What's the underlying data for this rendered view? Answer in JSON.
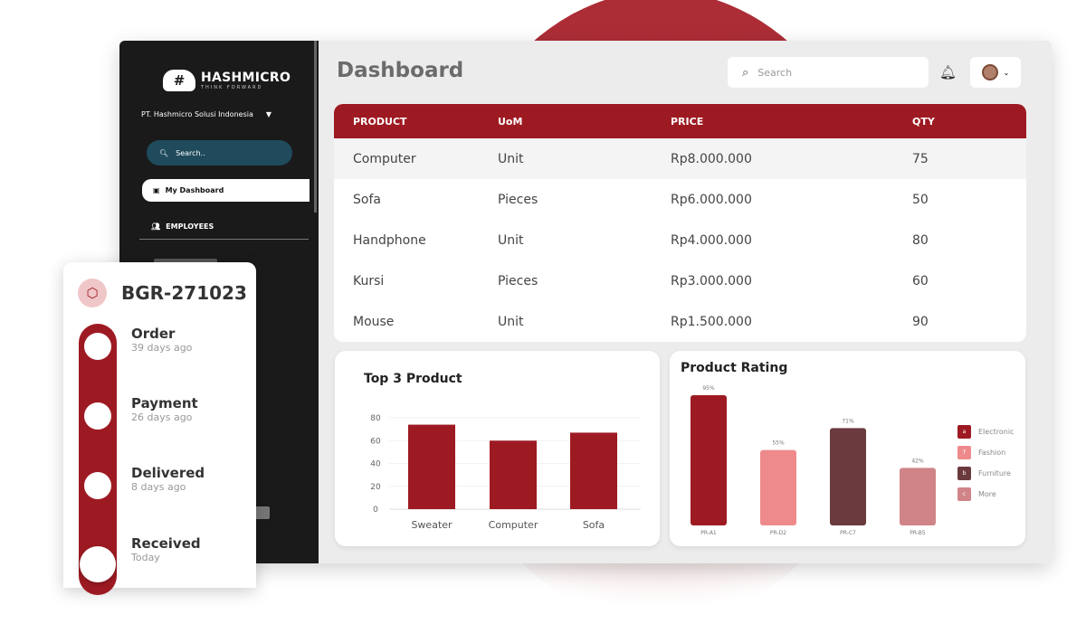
{
  "sidebar": {
    "logo_text": "HASHMICRO",
    "logo_tagline": "THINK FORWARD",
    "company": "PT. Hashmicro Solusi Indonesia",
    "search_placeholder": "Search..",
    "active_item": "My Dashboard",
    "section": "EMPLOYEES"
  },
  "header": {
    "title": "Dashboard",
    "search_placeholder": "Search"
  },
  "table": {
    "columns": [
      "PRODUCT",
      "UoM",
      "PRICE",
      "QTY"
    ],
    "rows": [
      [
        "Computer",
        "Unit",
        "Rp8.000.000",
        "75"
      ],
      [
        "Sofa",
        "Pieces",
        "Rp6.000.000",
        "50"
      ],
      [
        "Handphone",
        "Unit",
        "Rp4.000.000",
        "80"
      ],
      [
        "Kursi",
        "Pieces",
        "Rp3.000.000",
        "60"
      ],
      [
        "Mouse",
        "Unit",
        "Rp1.500.000",
        "90"
      ]
    ]
  },
  "chart_data": [
    {
      "type": "bar",
      "title": "Top 3 Product",
      "categories": [
        "Sweater",
        "Computer",
        "Sofa"
      ],
      "values": [
        74,
        60,
        67
      ],
      "yticks": [
        "0",
        "20",
        "40",
        "60",
        "80"
      ],
      "ylim": [
        0,
        80
      ],
      "color": "#9e1a22"
    },
    {
      "type": "bar",
      "title": "Product Rating",
      "categories": [
        "PR-A1",
        "PR-D2",
        "PR-C7",
        "PR-B5"
      ],
      "values": [
        95,
        55,
        71,
        42
      ],
      "labels": [
        "95%",
        "55%",
        "71%",
        "42%"
      ],
      "colors": [
        "#9e1a22",
        "#ef8a8c",
        "#6b3a3e",
        "#d08488"
      ],
      "legend": [
        {
          "key": "a",
          "label": "Electronic"
        },
        {
          "key": "f",
          "label": "Fashion"
        },
        {
          "key": "b",
          "label": "Furniture"
        },
        {
          "key": "c",
          "label": "More"
        }
      ],
      "legend_position": "right"
    }
  ],
  "tracking": {
    "id": "BGR-271023",
    "steps": [
      {
        "name": "Order",
        "time": "39 days ago"
      },
      {
        "name": "Payment",
        "time": "26 days ago"
      },
      {
        "name": "Delivered",
        "time": "8 days ago"
      },
      {
        "name": "Received",
        "time": "Today"
      }
    ]
  }
}
